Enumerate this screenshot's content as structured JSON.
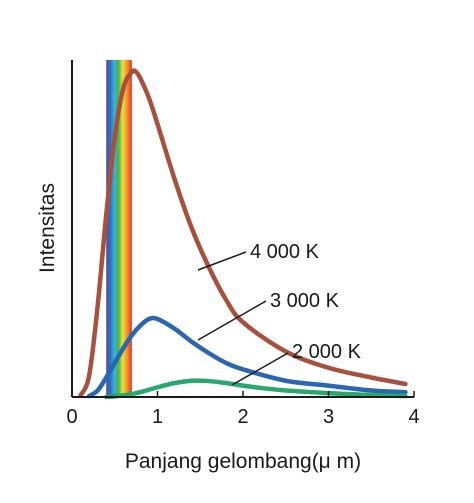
{
  "chart_data": {
    "type": "line",
    "xlabel": "Panjang gelombang(μ m)",
    "ylabel": "Intensitas",
    "xlim": [
      0,
      4
    ],
    "x_ticks": [
      "0",
      "1",
      "2",
      "3",
      "4"
    ],
    "grid": false,
    "visible_spectrum_band_um": [
      0.4,
      0.7
    ],
    "series": [
      {
        "name": "4 000 K",
        "color": "#a9503c",
        "x": [
          0.1,
          0.2,
          0.3,
          0.4,
          0.5,
          0.6,
          0.7,
          0.75,
          0.8,
          0.9,
          1.0,
          1.2,
          1.4,
          1.6,
          1.8,
          2.0,
          2.5,
          3.0,
          3.5,
          3.9
        ],
        "y": [
          0.5,
          6.5,
          28,
          56,
          80,
          95,
          100,
          100,
          98,
          92,
          84,
          67,
          52,
          40,
          30,
          23,
          14,
          9,
          6,
          4
        ]
      },
      {
        "name": "3 000 K",
        "color": "#2a66b2",
        "x": [
          0.2,
          0.3,
          0.4,
          0.5,
          0.6,
          0.7,
          0.8,
          0.9,
          1.0,
          1.2,
          1.4,
          1.6,
          1.8,
          2.0,
          2.5,
          3.0,
          3.5,
          3.9
        ],
        "y": [
          0.3,
          2,
          6,
          10.5,
          15,
          19,
          22,
          24,
          24,
          21,
          17,
          13.5,
          10.5,
          8.5,
          5,
          3.5,
          2,
          1.5
        ]
      },
      {
        "name": "2 000 K",
        "color": "#27a86c",
        "x": [
          0.4,
          0.6,
          0.8,
          1.0,
          1.2,
          1.4,
          1.5,
          1.6,
          1.8,
          2.0,
          2.2,
          2.5,
          3.0,
          3.5,
          3.9
        ],
        "y": [
          0,
          0.5,
          1.5,
          3,
          4.3,
          5,
          5,
          4.9,
          4.3,
          3.5,
          2.8,
          2,
          1.2,
          0.6,
          0.3
        ]
      }
    ]
  }
}
